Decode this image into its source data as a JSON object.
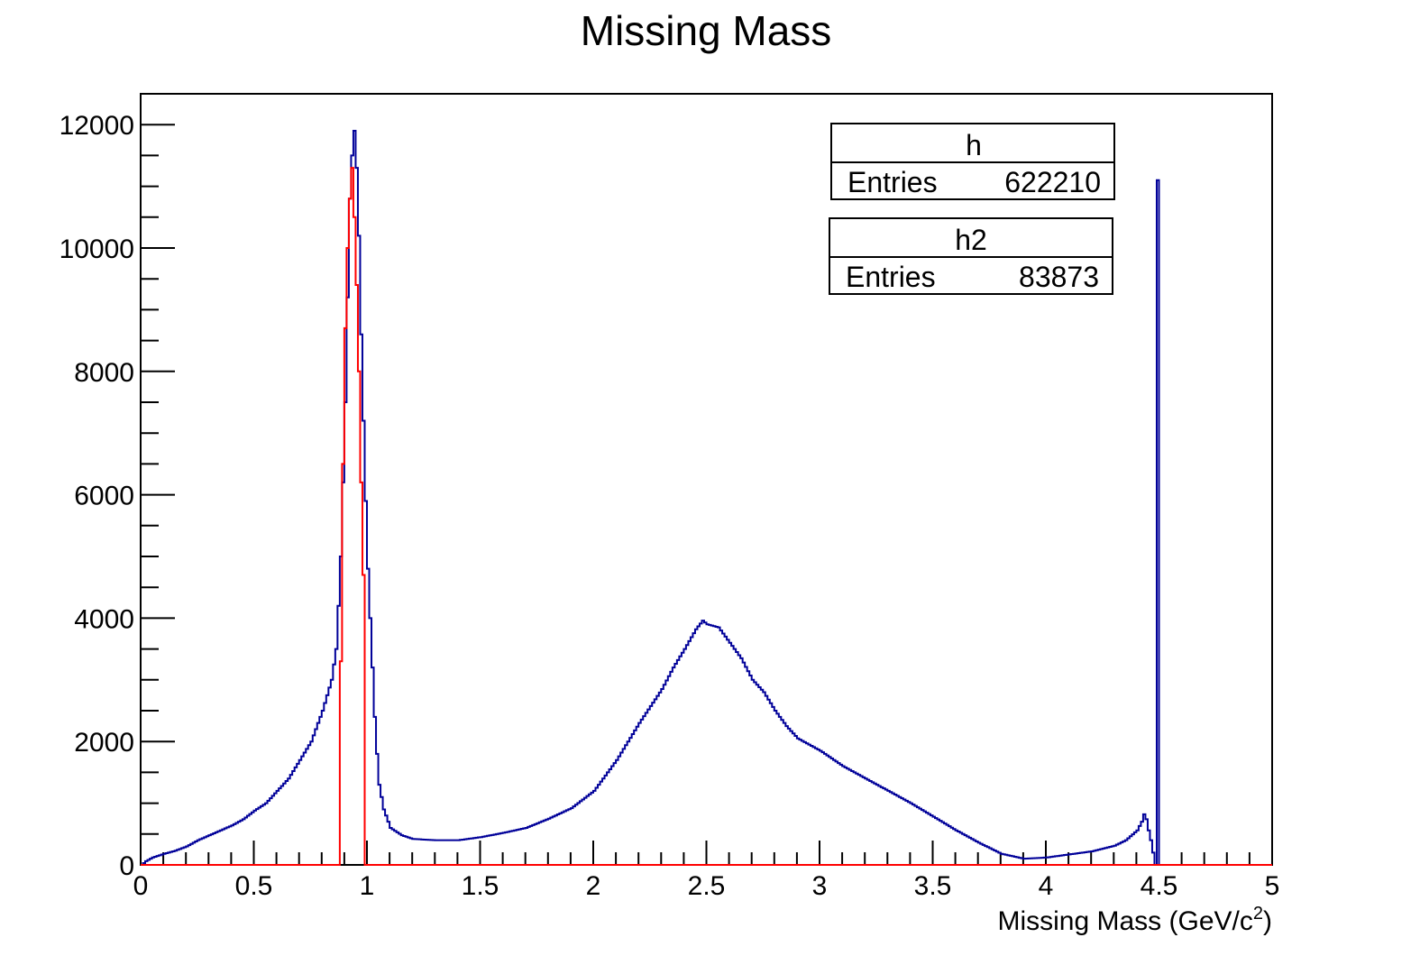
{
  "chart_data": {
    "type": "histogram",
    "title": "Missing Mass",
    "xlabel": "Missing Mass (GeV/c",
    "xlabel_sup": "2",
    "xlabel_end": ")",
    "ylabel": "",
    "xlim": [
      0,
      5
    ],
    "ylim": [
      0,
      12500
    ],
    "grid": false,
    "x_ticks": [
      "0",
      "0.5",
      "1",
      "1.5",
      "2",
      "2.5",
      "3",
      "3.5",
      "4",
      "4.5",
      "5"
    ],
    "y_ticks": [
      "0",
      "2000",
      "4000",
      "6000",
      "8000",
      "10000",
      "12000"
    ],
    "stat_boxes": [
      {
        "name": "h",
        "label": "Entries",
        "value": "622210"
      },
      {
        "name": "h2",
        "label": "Entries",
        "value": "83873"
      }
    ],
    "series": [
      {
        "name": "h",
        "color": "#000099",
        "bin_width": 0.01,
        "x_start": 0.0,
        "anchors": [
          [
            0.0,
            0
          ],
          [
            0.02,
            60
          ],
          [
            0.05,
            120
          ],
          [
            0.1,
            180
          ],
          [
            0.15,
            230
          ],
          [
            0.2,
            300
          ],
          [
            0.25,
            400
          ],
          [
            0.3,
            480
          ],
          [
            0.35,
            560
          ],
          [
            0.4,
            640
          ],
          [
            0.45,
            740
          ],
          [
            0.5,
            880
          ],
          [
            0.55,
            1000
          ],
          [
            0.6,
            1200
          ],
          [
            0.65,
            1400
          ],
          [
            0.7,
            1700
          ],
          [
            0.75,
            2000
          ],
          [
            0.8,
            2500
          ],
          [
            0.84,
            3000
          ],
          [
            0.86,
            3500
          ],
          [
            0.87,
            4200
          ],
          [
            0.88,
            5000
          ],
          [
            0.89,
            6200
          ],
          [
            0.9,
            7500
          ],
          [
            0.91,
            9200
          ],
          [
            0.92,
            10800
          ],
          [
            0.93,
            11500
          ],
          [
            0.94,
            11900
          ],
          [
            0.95,
            11300
          ],
          [
            0.96,
            10200
          ],
          [
            0.97,
            8600
          ],
          [
            0.98,
            7200
          ],
          [
            0.99,
            5900
          ],
          [
            1.0,
            4800
          ],
          [
            1.01,
            4000
          ],
          [
            1.02,
            3200
          ],
          [
            1.03,
            2400
          ],
          [
            1.04,
            1800
          ],
          [
            1.05,
            1300
          ],
          [
            1.07,
            900
          ],
          [
            1.1,
            600
          ],
          [
            1.15,
            480
          ],
          [
            1.2,
            420
          ],
          [
            1.3,
            400
          ],
          [
            1.4,
            400
          ],
          [
            1.5,
            450
          ],
          [
            1.6,
            520
          ],
          [
            1.7,
            600
          ],
          [
            1.8,
            750
          ],
          [
            1.9,
            920
          ],
          [
            2.0,
            1200
          ],
          [
            2.05,
            1450
          ],
          [
            2.1,
            1700
          ],
          [
            2.2,
            2300
          ],
          [
            2.3,
            2850
          ],
          [
            2.35,
            3200
          ],
          [
            2.4,
            3500
          ],
          [
            2.45,
            3820
          ],
          [
            2.48,
            3960
          ],
          [
            2.5,
            3900
          ],
          [
            2.55,
            3850
          ],
          [
            2.6,
            3600
          ],
          [
            2.65,
            3350
          ],
          [
            2.7,
            3000
          ],
          [
            2.75,
            2800
          ],
          [
            2.8,
            2500
          ],
          [
            2.85,
            2250
          ],
          [
            2.9,
            2050
          ],
          [
            3.0,
            1850
          ],
          [
            3.1,
            1600
          ],
          [
            3.2,
            1400
          ],
          [
            3.3,
            1200
          ],
          [
            3.4,
            1000
          ],
          [
            3.5,
            780
          ],
          [
            3.6,
            560
          ],
          [
            3.7,
            360
          ],
          [
            3.8,
            180
          ],
          [
            3.9,
            100
          ],
          [
            4.0,
            120
          ],
          [
            4.1,
            170
          ],
          [
            4.2,
            220
          ],
          [
            4.3,
            310
          ],
          [
            4.35,
            400
          ],
          [
            4.4,
            560
          ],
          [
            4.42,
            700
          ],
          [
            4.43,
            820
          ],
          [
            4.44,
            740
          ],
          [
            4.45,
            560
          ],
          [
            4.46,
            400
          ],
          [
            4.47,
            200
          ],
          [
            4.48,
            0
          ],
          [
            4.49,
            11100
          ],
          [
            4.5,
            0
          ],
          [
            5.0,
            0
          ]
        ]
      },
      {
        "name": "h2",
        "color": "#ff0000",
        "bin_width": 0.01,
        "x_start": 0.0,
        "anchors": [
          [
            0.0,
            0
          ],
          [
            0.87,
            0
          ],
          [
            0.88,
            3300
          ],
          [
            0.89,
            6500
          ],
          [
            0.9,
            8700
          ],
          [
            0.91,
            10000
          ],
          [
            0.92,
            10800
          ],
          [
            0.93,
            11300
          ],
          [
            0.94,
            10500
          ],
          [
            0.95,
            9400
          ],
          [
            0.96,
            8000
          ],
          [
            0.97,
            6200
          ],
          [
            0.98,
            4700
          ],
          [
            0.99,
            0
          ],
          [
            5.0,
            0
          ]
        ]
      }
    ]
  }
}
